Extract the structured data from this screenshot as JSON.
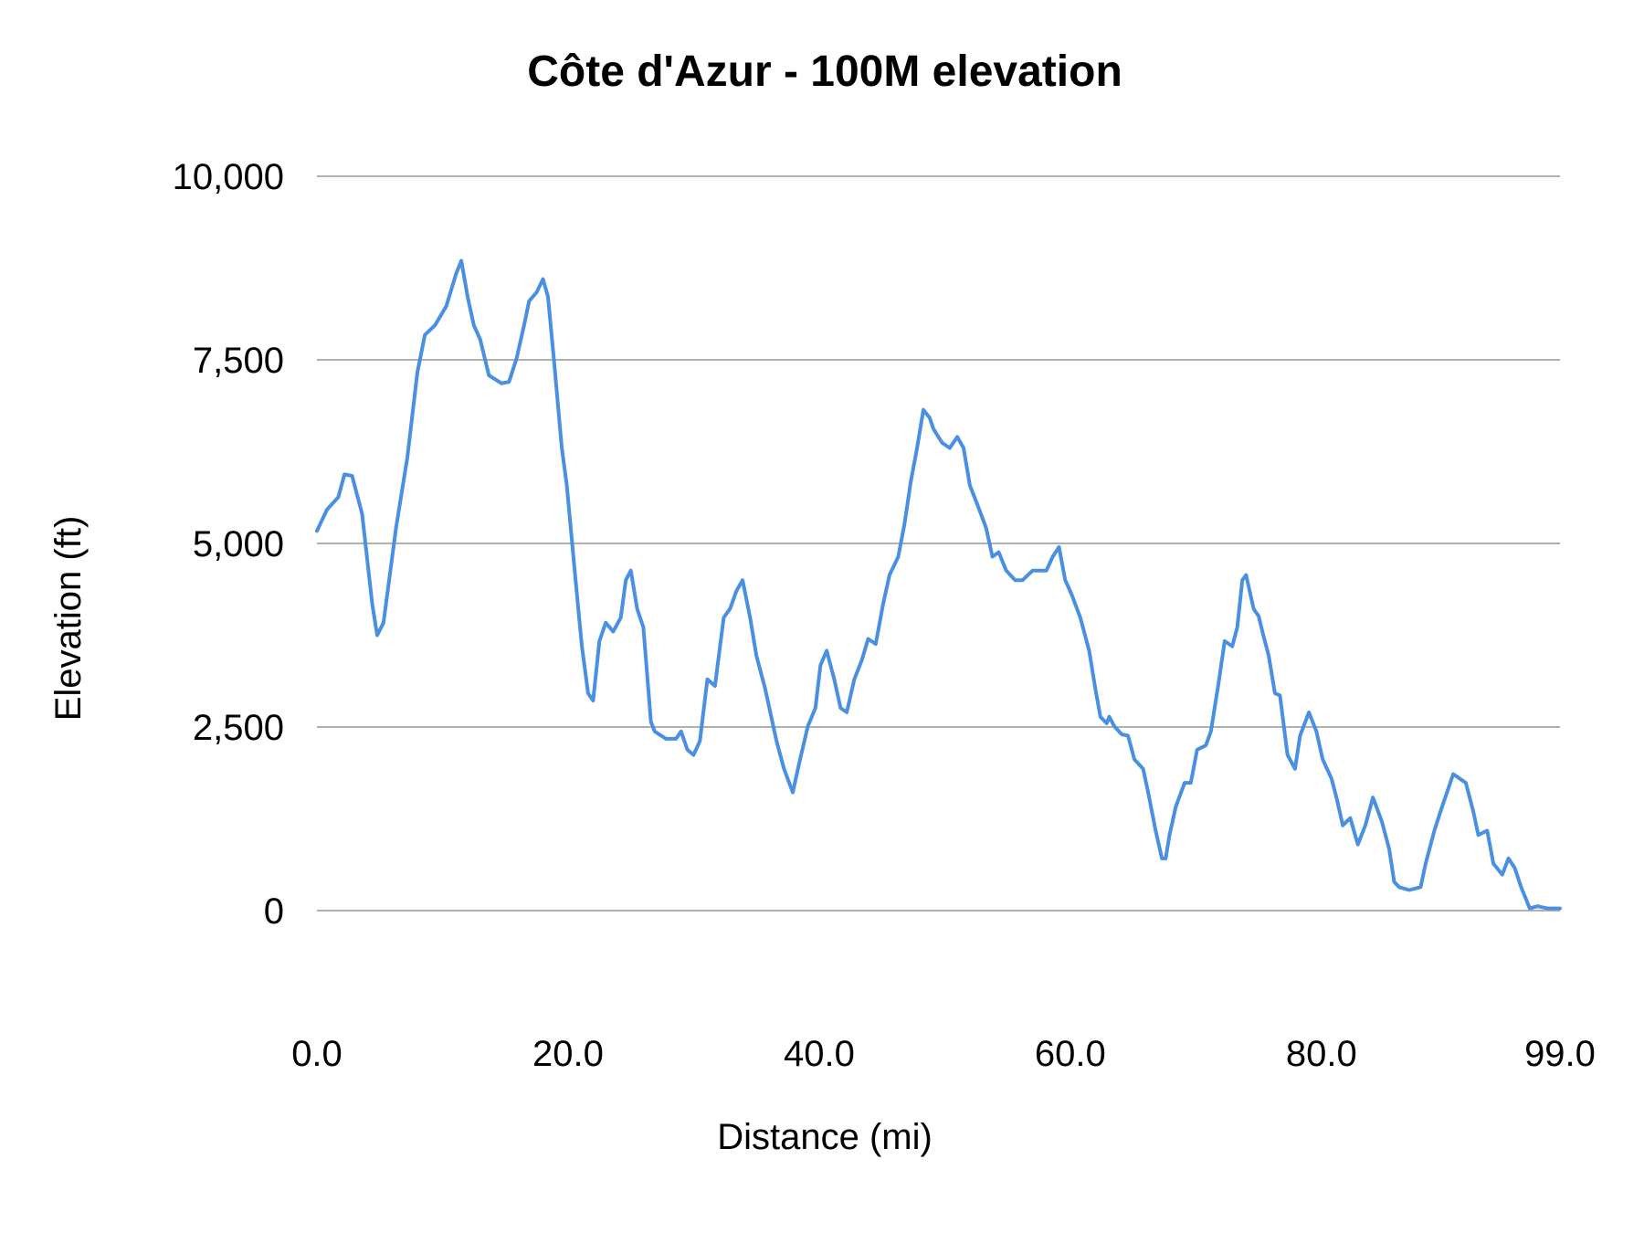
{
  "chart_data": {
    "type": "line",
    "title": "Côte d'Azur - 100M elevation",
    "xlabel": "Distance (mi)",
    "ylabel": "Elevation (ft)",
    "xlim": [
      0,
      99
    ],
    "ylim": [
      0,
      10000
    ],
    "x_ticks": [
      0,
      20,
      40,
      60,
      80,
      99
    ],
    "x_tick_labels": [
      "0.0",
      "20.0",
      "40.0",
      "60.0",
      "80.0",
      "99.0"
    ],
    "y_ticks": [
      0,
      2500,
      5000,
      7500,
      10000
    ],
    "y_tick_labels": [
      "0",
      "2,500",
      "5,000",
      "7,500",
      "10,000"
    ],
    "grid": "horizontal",
    "legend": "none",
    "series_color": "#4a90e2",
    "grid_color": "#b0b0b0",
    "series": [
      {
        "x": [
          0,
          0.8,
          1.7,
          2.2,
          2.8,
          3.6,
          4.4,
          4.8,
          5.3,
          6.3,
          7.2,
          8.0,
          8.6,
          9.4,
          10.3,
          11.1,
          11.5,
          12.0,
          12.5,
          13.0,
          13.7,
          14.7,
          15.3,
          15.9,
          16.5,
          16.9,
          17.5,
          18.0,
          18.4,
          18.9,
          19.5,
          19.9,
          20.6,
          21.1,
          21.6,
          22.0,
          22.5,
          23.0,
          23.6,
          24.2,
          24.6,
          25.0,
          25.5,
          26.0,
          26.6,
          26.9,
          27.8,
          28.6,
          29.0,
          29.5,
          30.0,
          30.5,
          31.1,
          31.7,
          32.4,
          32.9,
          33.4,
          33.9,
          34.5,
          35.0,
          35.7,
          36.6,
          37.2,
          37.9,
          38.4,
          39.1,
          39.7,
          40.1,
          40.6,
          41.2,
          41.7,
          42.2,
          42.8,
          43.4,
          43.9,
          44.5,
          45.1,
          45.6,
          46.3,
          46.8,
          47.3,
          47.8,
          48.3,
          48.8,
          49.1,
          49.8,
          50.4,
          51.0,
          51.5,
          52.0,
          52.6,
          53.3,
          53.8,
          54.3,
          54.9,
          55.6,
          56.2,
          57.0,
          58.1,
          58.6,
          59.1,
          59.6,
          60.1,
          60.8,
          61.5,
          62.0,
          62.4,
          62.9,
          63.1,
          63.5,
          64.1,
          64.6,
          65.1,
          65.8,
          66.2,
          66.8,
          67.3,
          67.6,
          67.9,
          68.4,
          69.1,
          69.6,
          70.1,
          70.8,
          71.2,
          71.8,
          72.3,
          72.9,
          73.3,
          73.7,
          74.0,
          74.6,
          75.0,
          75.4,
          75.8,
          76.3,
          76.7,
          77.3,
          77.9,
          78.3,
          79.0,
          79.6,
          80.1,
          80.8,
          81.2,
          81.7,
          82.3,
          82.9,
          83.5,
          84.1,
          84.8,
          85.4,
          85.8,
          86.2,
          87.0,
          87.9,
          88.3,
          89.0,
          89.6,
          90.0,
          90.5,
          91.0,
          91.5,
          92.1,
          92.5,
          93.2,
          93.7,
          94.4,
          94.9,
          95.4,
          95.9,
          96.6,
          97.2,
          98.0,
          99.0
        ],
        "y": [
          5170,
          5460,
          5630,
          5940,
          5920,
          5400,
          4180,
          3750,
          3920,
          5210,
          6170,
          7330,
          7840,
          7970,
          8230,
          8680,
          8850,
          8360,
          7970,
          7780,
          7290,
          7180,
          7200,
          7520,
          7970,
          8300,
          8420,
          8600,
          8360,
          7460,
          6300,
          5790,
          4500,
          3600,
          2960,
          2860,
          3670,
          3920,
          3800,
          3990,
          4500,
          4630,
          4110,
          3860,
          2570,
          2440,
          2340,
          2340,
          2440,
          2190,
          2120,
          2310,
          3150,
          3060,
          3990,
          4110,
          4350,
          4500,
          3990,
          3470,
          3020,
          2310,
          1930,
          1610,
          2000,
          2510,
          2760,
          3340,
          3540,
          3150,
          2760,
          2700,
          3150,
          3410,
          3700,
          3630,
          4180,
          4570,
          4820,
          5270,
          5850,
          6300,
          6820,
          6710,
          6560,
          6370,
          6300,
          6450,
          6300,
          5790,
          5530,
          5210,
          4820,
          4880,
          4630,
          4500,
          4500,
          4630,
          4630,
          4820,
          4950,
          4500,
          4310,
          3990,
          3540,
          3020,
          2640,
          2550,
          2640,
          2510,
          2400,
          2380,
          2060,
          1930,
          1610,
          1090,
          710,
          710,
          1030,
          1410,
          1740,
          1740,
          2190,
          2250,
          2440,
          3090,
          3670,
          3600,
          3860,
          4500,
          4570,
          4110,
          4010,
          3730,
          3470,
          2960,
          2930,
          2120,
          1930,
          2380,
          2700,
          2440,
          2060,
          1800,
          1540,
          1160,
          1260,
          900,
          1160,
          1540,
          1220,
          840,
          390,
          320,
          280,
          320,
          640,
          1090,
          1410,
          1610,
          1860,
          1800,
          1740,
          1350,
          1030,
          1090,
          640,
          490,
          710,
          580,
          320,
          30,
          60,
          30,
          30
        ]
      }
    ]
  }
}
